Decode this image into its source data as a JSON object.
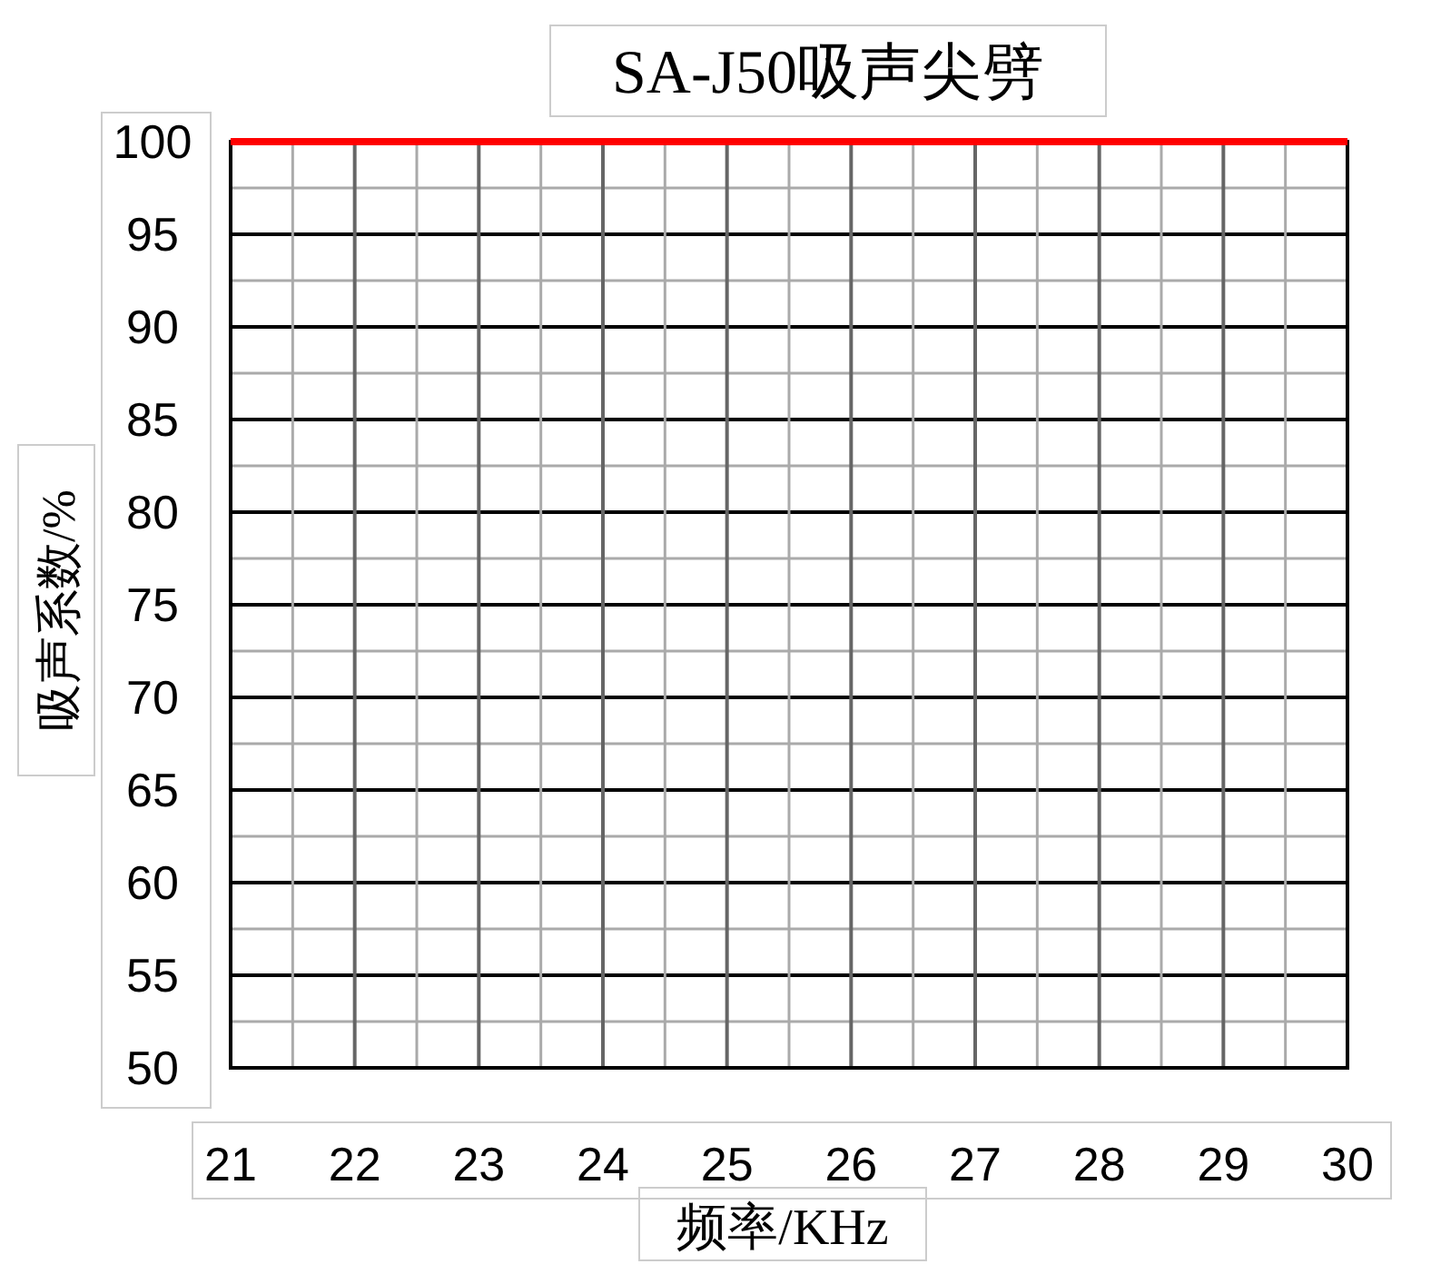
{
  "chart_data": {
    "type": "line",
    "title": "SA-J50吸声尖劈",
    "xlabel": "频率/KHz",
    "ylabel": "吸声系数/%",
    "x": [
      21,
      30
    ],
    "series": [
      {
        "color": "#ff0000",
        "values": [
          100,
          100
        ]
      }
    ],
    "xlim": [
      21,
      30
    ],
    "ylim": [
      50,
      100
    ],
    "xticks": [
      21,
      {
        "value": 21.5,
        "label": null
      },
      22,
      {
        "value": 22.5,
        "label": null
      },
      23,
      {
        "value": 23.5,
        "label": null
      },
      24,
      {
        "value": 24.5,
        "label": null
      },
      25,
      {
        "value": 25.5,
        "label": null
      },
      26,
      {
        "value": 26.5,
        "label": null
      },
      27,
      {
        "value": 27.5,
        "label": null
      },
      28,
      {
        "value": 28.5,
        "label": null
      },
      29,
      {
        "value": 29.5,
        "label": null
      },
      30
    ],
    "yticks": [
      50,
      {
        "value": 52.5,
        "label": null
      },
      55,
      {
        "value": 57.5,
        "label": null
      },
      60,
      {
        "value": 62.5,
        "label": null
      },
      65,
      {
        "value": 67.5,
        "label": null
      },
      70,
      {
        "value": 72.5,
        "label": null
      },
      75,
      {
        "value": 77.5,
        "label": null
      },
      80,
      {
        "value": 82.5,
        "label": null
      },
      85,
      {
        "value": 87.5,
        "label": null
      },
      90,
      {
        "value": 92.5,
        "label": null
      },
      95,
      {
        "value": 97.5,
        "label": null
      },
      100
    ],
    "grid": true,
    "line_style": "solid"
  }
}
